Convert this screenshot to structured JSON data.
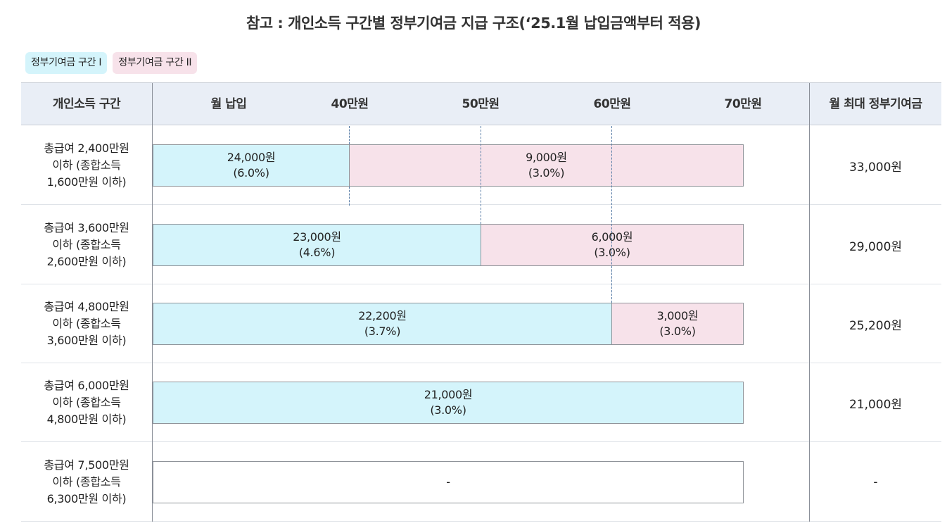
{
  "title": "참고 : 개인소득 구간별 정부기여금 지급 구조(‘25.1월 납입금액부터 적용)",
  "legend": {
    "tier1": "정부기여금 구간 Ⅰ",
    "tier2": "정부기여금 구간 II"
  },
  "header": {
    "income_bracket": "개인소득 구간",
    "monthly_payment": "월 납입",
    "ticks": [
      "40만원",
      "50만원",
      "60만원",
      "70만원"
    ],
    "max_contribution": "월 최대 정부기여금"
  },
  "rows": [
    {
      "label": [
        "총급여 2,400만원",
        "이하 (종합소득",
        "1,600만원 이하)"
      ],
      "seg1": {
        "amount": "24,000원",
        "rate": "(6.0%)"
      },
      "seg2": {
        "amount": "9,000원",
        "rate": "(3.0%)"
      },
      "max": "33,000원"
    },
    {
      "label": [
        "총급여 3,600만원",
        "이하 (종합소득",
        "2,600만원 이하)"
      ],
      "seg1": {
        "amount": "23,000원",
        "rate": "(4.6%)"
      },
      "seg2": {
        "amount": "6,000원",
        "rate": "(3.0%)"
      },
      "max": "29,000원"
    },
    {
      "label": [
        "총급여 4,800만원",
        "이하 (종합소득",
        "3,600만원 이하)"
      ],
      "seg1": {
        "amount": "22,200원",
        "rate": "(3.7%)"
      },
      "seg2": {
        "amount": "3,000원",
        "rate": "(3.0%)"
      },
      "max": "25,200원"
    },
    {
      "label": [
        "총급여 6,000만원",
        "이하 (종합소득",
        "4,800만원 이하)"
      ],
      "seg1": {
        "amount": "21,000원",
        "rate": "(3.0%)"
      },
      "max": "21,000원"
    },
    {
      "label": [
        "총급여 7,500만원",
        "이하 (종합소득",
        "6,300만원 이하)"
      ],
      "none": "-",
      "max": "-"
    }
  ],
  "colors": {
    "tier1": "#d4f4fb",
    "tier2": "#f7e2ea",
    "header_bg": "#e9eef6"
  }
}
